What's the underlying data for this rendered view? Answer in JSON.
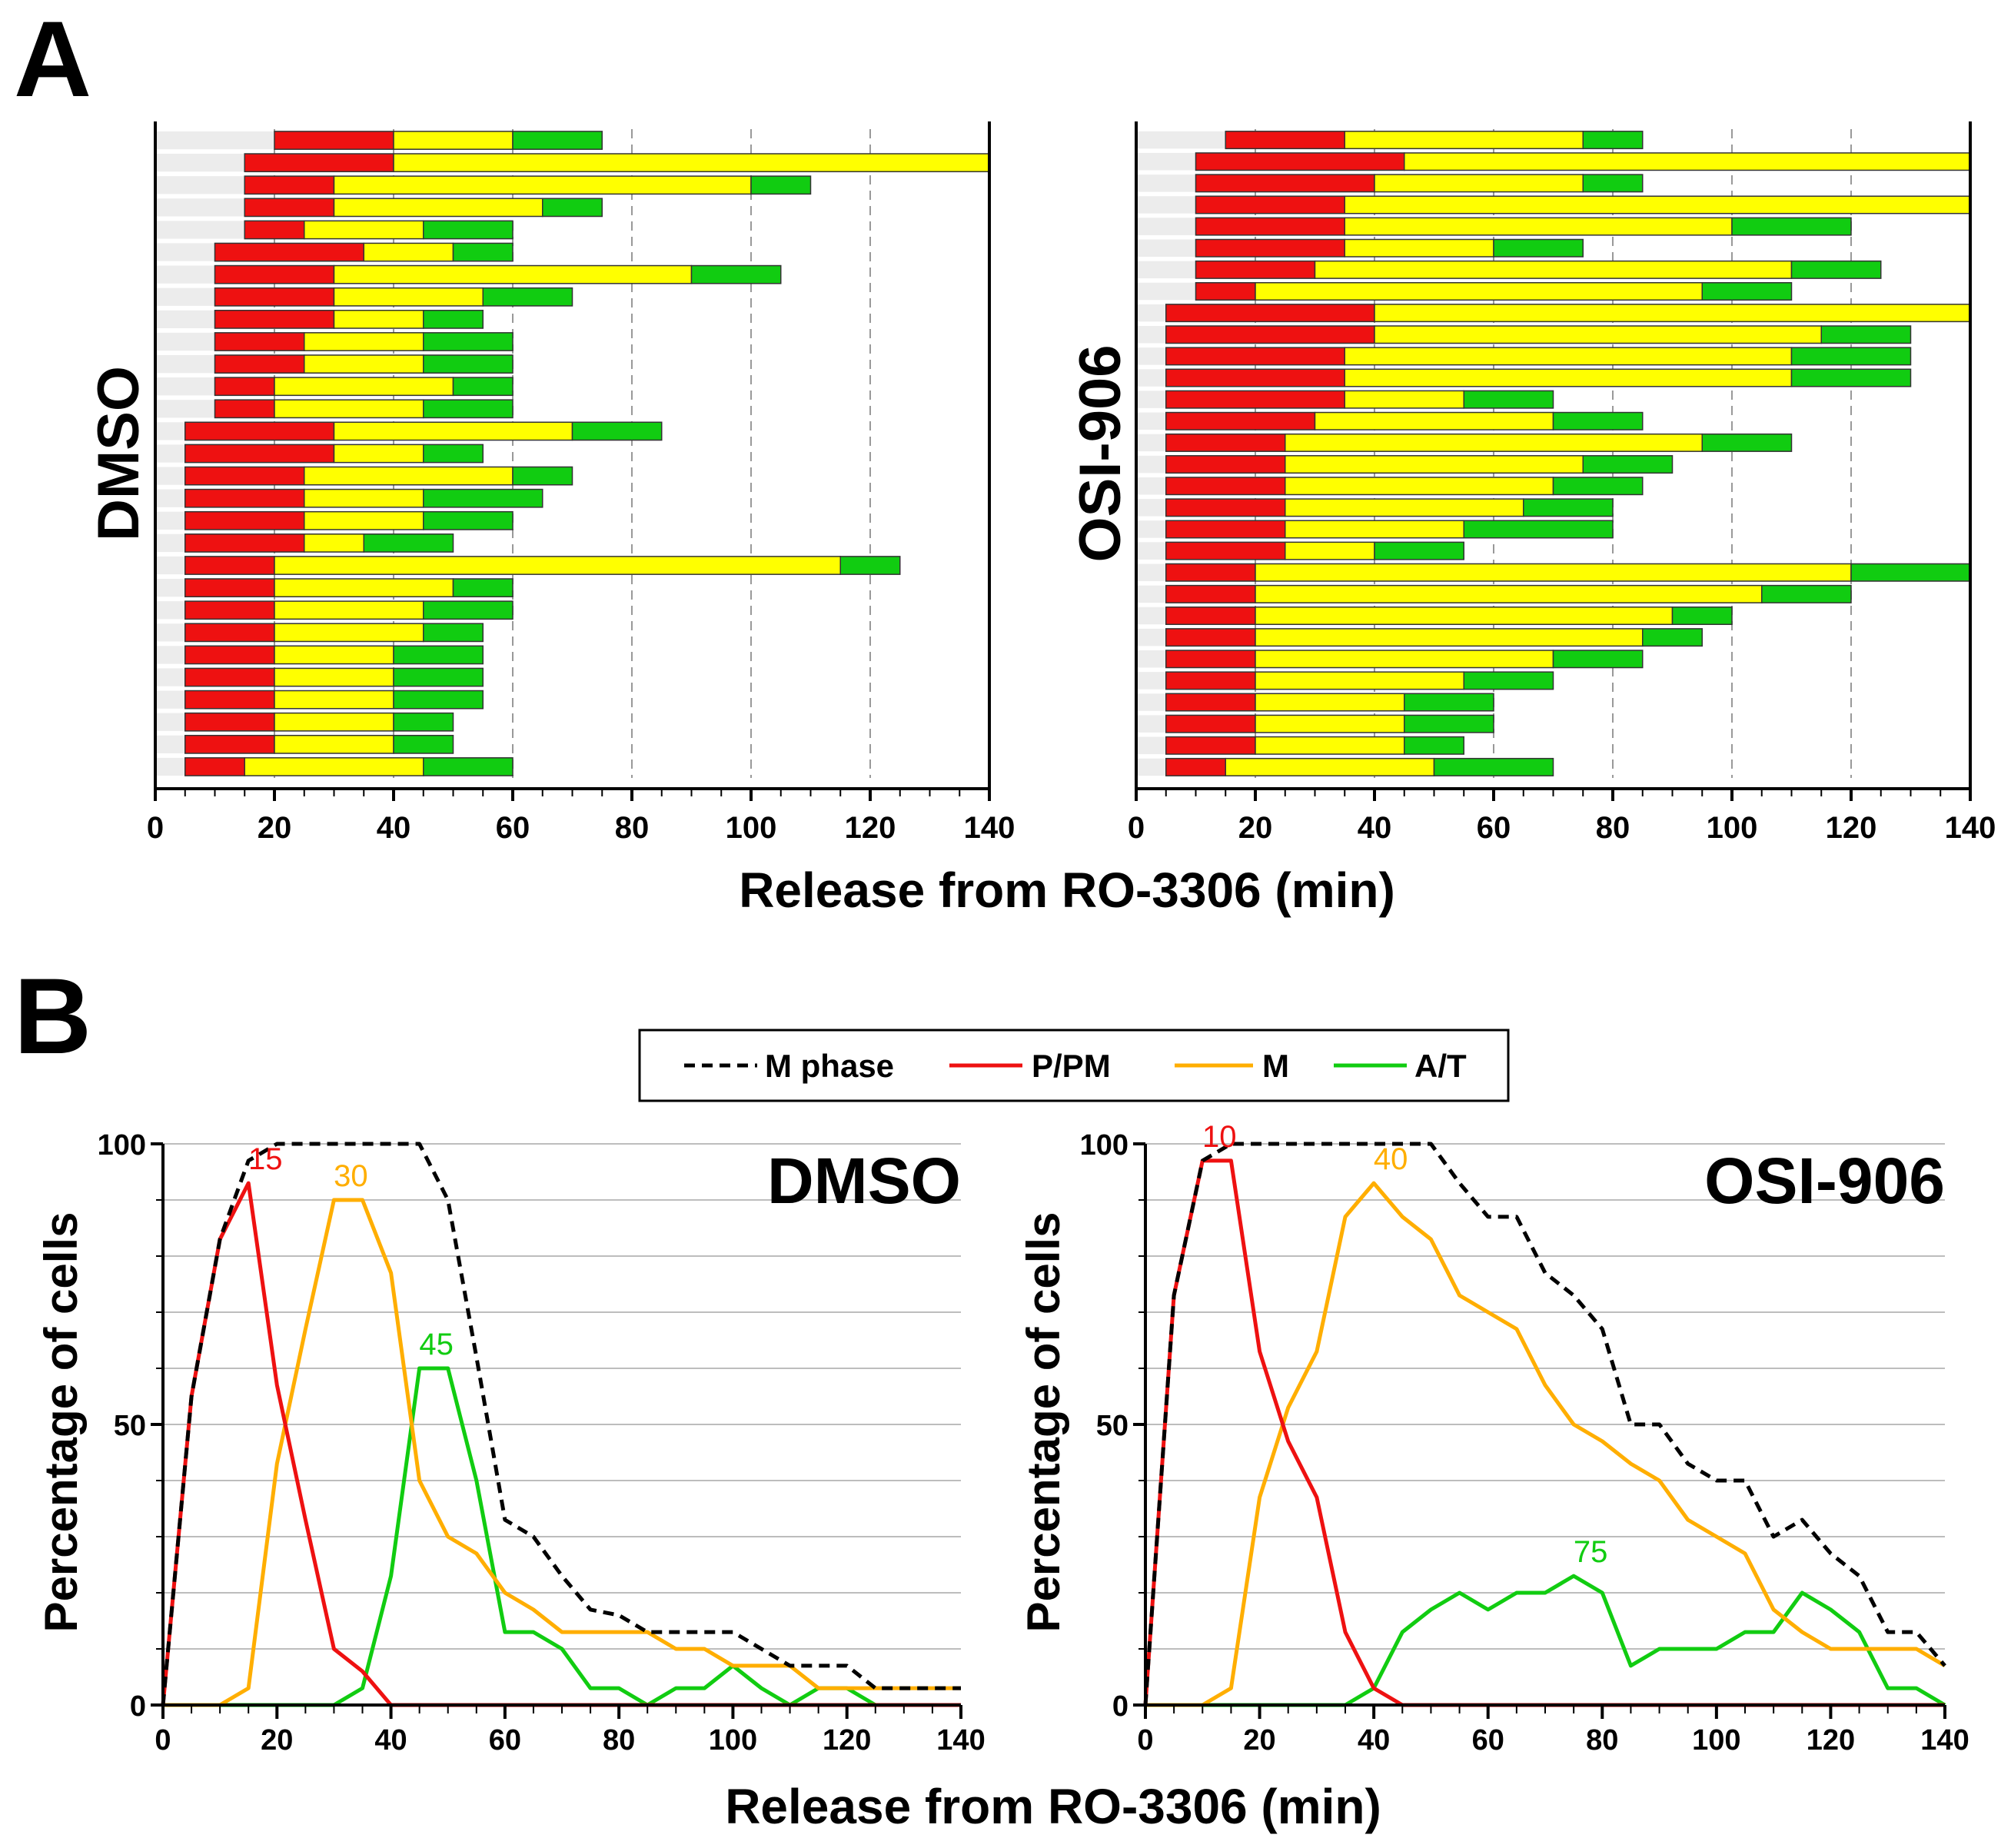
{
  "panel_labels": {
    "a": "A",
    "b": "B"
  },
  "colors": {
    "pp": "#ee1111",
    "m_bar": "#ffff00",
    "m_line": "#ffae00",
    "at": "#11cc11",
    "m_phase": "#000000",
    "row_bg": "#ececec",
    "grid": "#999999"
  },
  "legend": {
    "m_phase": "M phase",
    "pp": "P/PM",
    "m": "M",
    "at": "A/T"
  },
  "chart_data": [
    {
      "type": "bar",
      "subtype": "stacked-horizontal-timeline",
      "title": "DMSO",
      "xlabel": "Release from RO-3306 (min)",
      "xlim": [
        0,
        140
      ],
      "xticks": [
        "0",
        "20",
        "40",
        "60",
        "80",
        "100",
        "120",
        "140"
      ],
      "segment_names": [
        "P/PM",
        "M",
        "A/T"
      ],
      "cells": [
        [
          20,
          40,
          60,
          75
        ],
        [
          15,
          40,
          140,
          140
        ],
        [
          15,
          30,
          100,
          110
        ],
        [
          15,
          30,
          65,
          75
        ],
        [
          15,
          25,
          45,
          60
        ],
        [
          10,
          35,
          50,
          60
        ],
        [
          10,
          30,
          90,
          105
        ],
        [
          10,
          30,
          55,
          70
        ],
        [
          10,
          30,
          45,
          55
        ],
        [
          10,
          25,
          45,
          60
        ],
        [
          10,
          25,
          45,
          60
        ],
        [
          10,
          20,
          50,
          60
        ],
        [
          10,
          20,
          45,
          60
        ],
        [
          5,
          30,
          70,
          85
        ],
        [
          5,
          30,
          45,
          55
        ],
        [
          5,
          25,
          60,
          70
        ],
        [
          5,
          25,
          45,
          65
        ],
        [
          5,
          25,
          45,
          60
        ],
        [
          5,
          25,
          35,
          50
        ],
        [
          5,
          20,
          115,
          125
        ],
        [
          5,
          20,
          50,
          60
        ],
        [
          5,
          20,
          45,
          60
        ],
        [
          5,
          20,
          45,
          55
        ],
        [
          5,
          20,
          40,
          55
        ],
        [
          5,
          20,
          40,
          55
        ],
        [
          5,
          20,
          40,
          55
        ],
        [
          5,
          20,
          40,
          50
        ],
        [
          5,
          20,
          40,
          50
        ],
        [
          5,
          15,
          45,
          60
        ]
      ]
    },
    {
      "type": "bar",
      "subtype": "stacked-horizontal-timeline",
      "title": "OSI-906",
      "xlabel": "Release from RO-3306 (min)",
      "xlim": [
        0,
        140
      ],
      "xticks": [
        "0",
        "20",
        "40",
        "60",
        "80",
        "100",
        "120",
        "140"
      ],
      "segment_names": [
        "P/PM",
        "M",
        "A/T"
      ],
      "cells": [
        [
          15,
          35,
          75,
          85
        ],
        [
          10,
          45,
          140,
          140
        ],
        [
          10,
          40,
          75,
          85
        ],
        [
          10,
          35,
          140,
          140
        ],
        [
          10,
          35,
          100,
          120
        ],
        [
          10,
          35,
          60,
          75
        ],
        [
          10,
          30,
          110,
          125
        ],
        [
          10,
          20,
          95,
          110
        ],
        [
          5,
          40,
          140,
          140
        ],
        [
          5,
          40,
          115,
          130
        ],
        [
          5,
          35,
          110,
          130
        ],
        [
          5,
          35,
          110,
          130
        ],
        [
          5,
          35,
          55,
          70
        ],
        [
          5,
          30,
          70,
          85
        ],
        [
          5,
          25,
          95,
          110
        ],
        [
          5,
          25,
          75,
          90
        ],
        [
          5,
          25,
          70,
          85
        ],
        [
          5,
          25,
          65,
          80
        ],
        [
          5,
          25,
          55,
          80
        ],
        [
          5,
          25,
          40,
          55
        ],
        [
          5,
          20,
          120,
          140
        ],
        [
          5,
          20,
          105,
          120
        ],
        [
          5,
          20,
          90,
          100
        ],
        [
          5,
          20,
          85,
          95
        ],
        [
          5,
          20,
          70,
          85
        ],
        [
          5,
          20,
          55,
          70
        ],
        [
          5,
          20,
          45,
          60
        ],
        [
          5,
          20,
          45,
          60
        ],
        [
          5,
          20,
          45,
          55
        ],
        [
          5,
          15,
          50,
          70
        ]
      ]
    },
    {
      "type": "line",
      "title": "DMSO",
      "xlabel": "Release from RO-3306 (min)",
      "ylabel": "Percentage of cells",
      "xlim": [
        0,
        140
      ],
      "ylim": [
        0,
        100
      ],
      "xticks": [
        "0",
        "20",
        "40",
        "60",
        "80",
        "100",
        "120",
        "140"
      ],
      "yticks": [
        "0",
        "50",
        "100"
      ],
      "x": [
        0,
        5,
        10,
        15,
        20,
        25,
        30,
        35,
        40,
        45,
        50,
        55,
        60,
        65,
        70,
        75,
        80,
        85,
        90,
        95,
        100,
        105,
        110,
        115,
        120,
        125,
        130,
        135,
        140
      ],
      "series": [
        {
          "name": "M phase",
          "values": [
            0,
            55,
            83,
            97,
            100,
            100,
            100,
            100,
            100,
            100,
            90,
            62,
            33,
            30,
            23,
            17,
            16,
            13,
            13,
            13,
            13,
            10,
            7,
            7,
            7,
            3,
            3,
            3,
            3
          ]
        },
        {
          "name": "P/PM",
          "values": [
            0,
            55,
            83,
            93,
            57,
            33,
            10,
            6,
            0,
            0,
            0,
            0,
            0,
            0,
            0,
            0,
            0,
            0,
            0,
            0,
            0,
            0,
            0,
            0,
            0,
            0,
            0,
            0,
            0
          ]
        },
        {
          "name": "M",
          "values": [
            0,
            0,
            0,
            3,
            43,
            67,
            90,
            90,
            77,
            40,
            30,
            27,
            20,
            17,
            13,
            13,
            13,
            13,
            10,
            10,
            7,
            7,
            7,
            3,
            3,
            3,
            3,
            3,
            3
          ]
        },
        {
          "name": "A/T",
          "values": [
            0,
            0,
            0,
            0,
            0,
            0,
            0,
            3,
            23,
            60,
            60,
            40,
            13,
            13,
            10,
            3,
            3,
            0,
            3,
            3,
            7,
            3,
            0,
            3,
            3,
            0,
            0,
            0,
            0
          ]
        }
      ],
      "annotations": [
        {
          "text": "15",
          "series": "P/PM",
          "x": 15,
          "y": 93
        },
        {
          "text": "30",
          "series": "M",
          "x": 30,
          "y": 90
        },
        {
          "text": "45",
          "series": "A/T",
          "x": 45,
          "y": 60
        }
      ]
    },
    {
      "type": "line",
      "title": "OSI-906",
      "xlabel": "Release from RO-3306 (min)",
      "ylabel": "Percentage of cells",
      "xlim": [
        0,
        140
      ],
      "ylim": [
        0,
        100
      ],
      "xticks": [
        "0",
        "20",
        "40",
        "60",
        "80",
        "100",
        "120",
        "140"
      ],
      "yticks": [
        "0",
        "50",
        "100"
      ],
      "x": [
        0,
        5,
        10,
        15,
        20,
        25,
        30,
        35,
        40,
        45,
        50,
        55,
        60,
        65,
        70,
        75,
        80,
        85,
        90,
        95,
        100,
        105,
        110,
        115,
        120,
        125,
        130,
        135,
        140
      ],
      "series": [
        {
          "name": "M phase",
          "values": [
            0,
            73,
            97,
            100,
            100,
            100,
            100,
            100,
            100,
            100,
            100,
            93,
            87,
            87,
            77,
            73,
            67,
            50,
            50,
            43,
            40,
            40,
            30,
            33,
            27,
            23,
            13,
            13,
            7
          ]
        },
        {
          "name": "P/PM",
          "values": [
            0,
            73,
            97,
            97,
            63,
            47,
            37,
            13,
            3,
            0,
            0,
            0,
            0,
            0,
            0,
            0,
            0,
            0,
            0,
            0,
            0,
            0,
            0,
            0,
            0,
            0,
            0,
            0,
            0
          ]
        },
        {
          "name": "M",
          "values": [
            0,
            0,
            0,
            3,
            37,
            53,
            63,
            87,
            93,
            87,
            83,
            73,
            70,
            67,
            57,
            50,
            47,
            43,
            40,
            33,
            30,
            27,
            17,
            13,
            10,
            10,
            10,
            10,
            7
          ]
        },
        {
          "name": "A/T",
          "values": [
            0,
            0,
            0,
            0,
            0,
            0,
            0,
            0,
            3,
            13,
            17,
            20,
            17,
            20,
            20,
            23,
            20,
            7,
            10,
            10,
            10,
            13,
            13,
            20,
            17,
            13,
            3,
            3,
            0
          ]
        }
      ],
      "annotations": [
        {
          "text": "10",
          "series": "P/PM",
          "x": 10,
          "y": 97
        },
        {
          "text": "40",
          "series": "M",
          "x": 40,
          "y": 93
        },
        {
          "text": "75",
          "series": "A/T",
          "x": 75,
          "y": 23
        }
      ]
    }
  ]
}
